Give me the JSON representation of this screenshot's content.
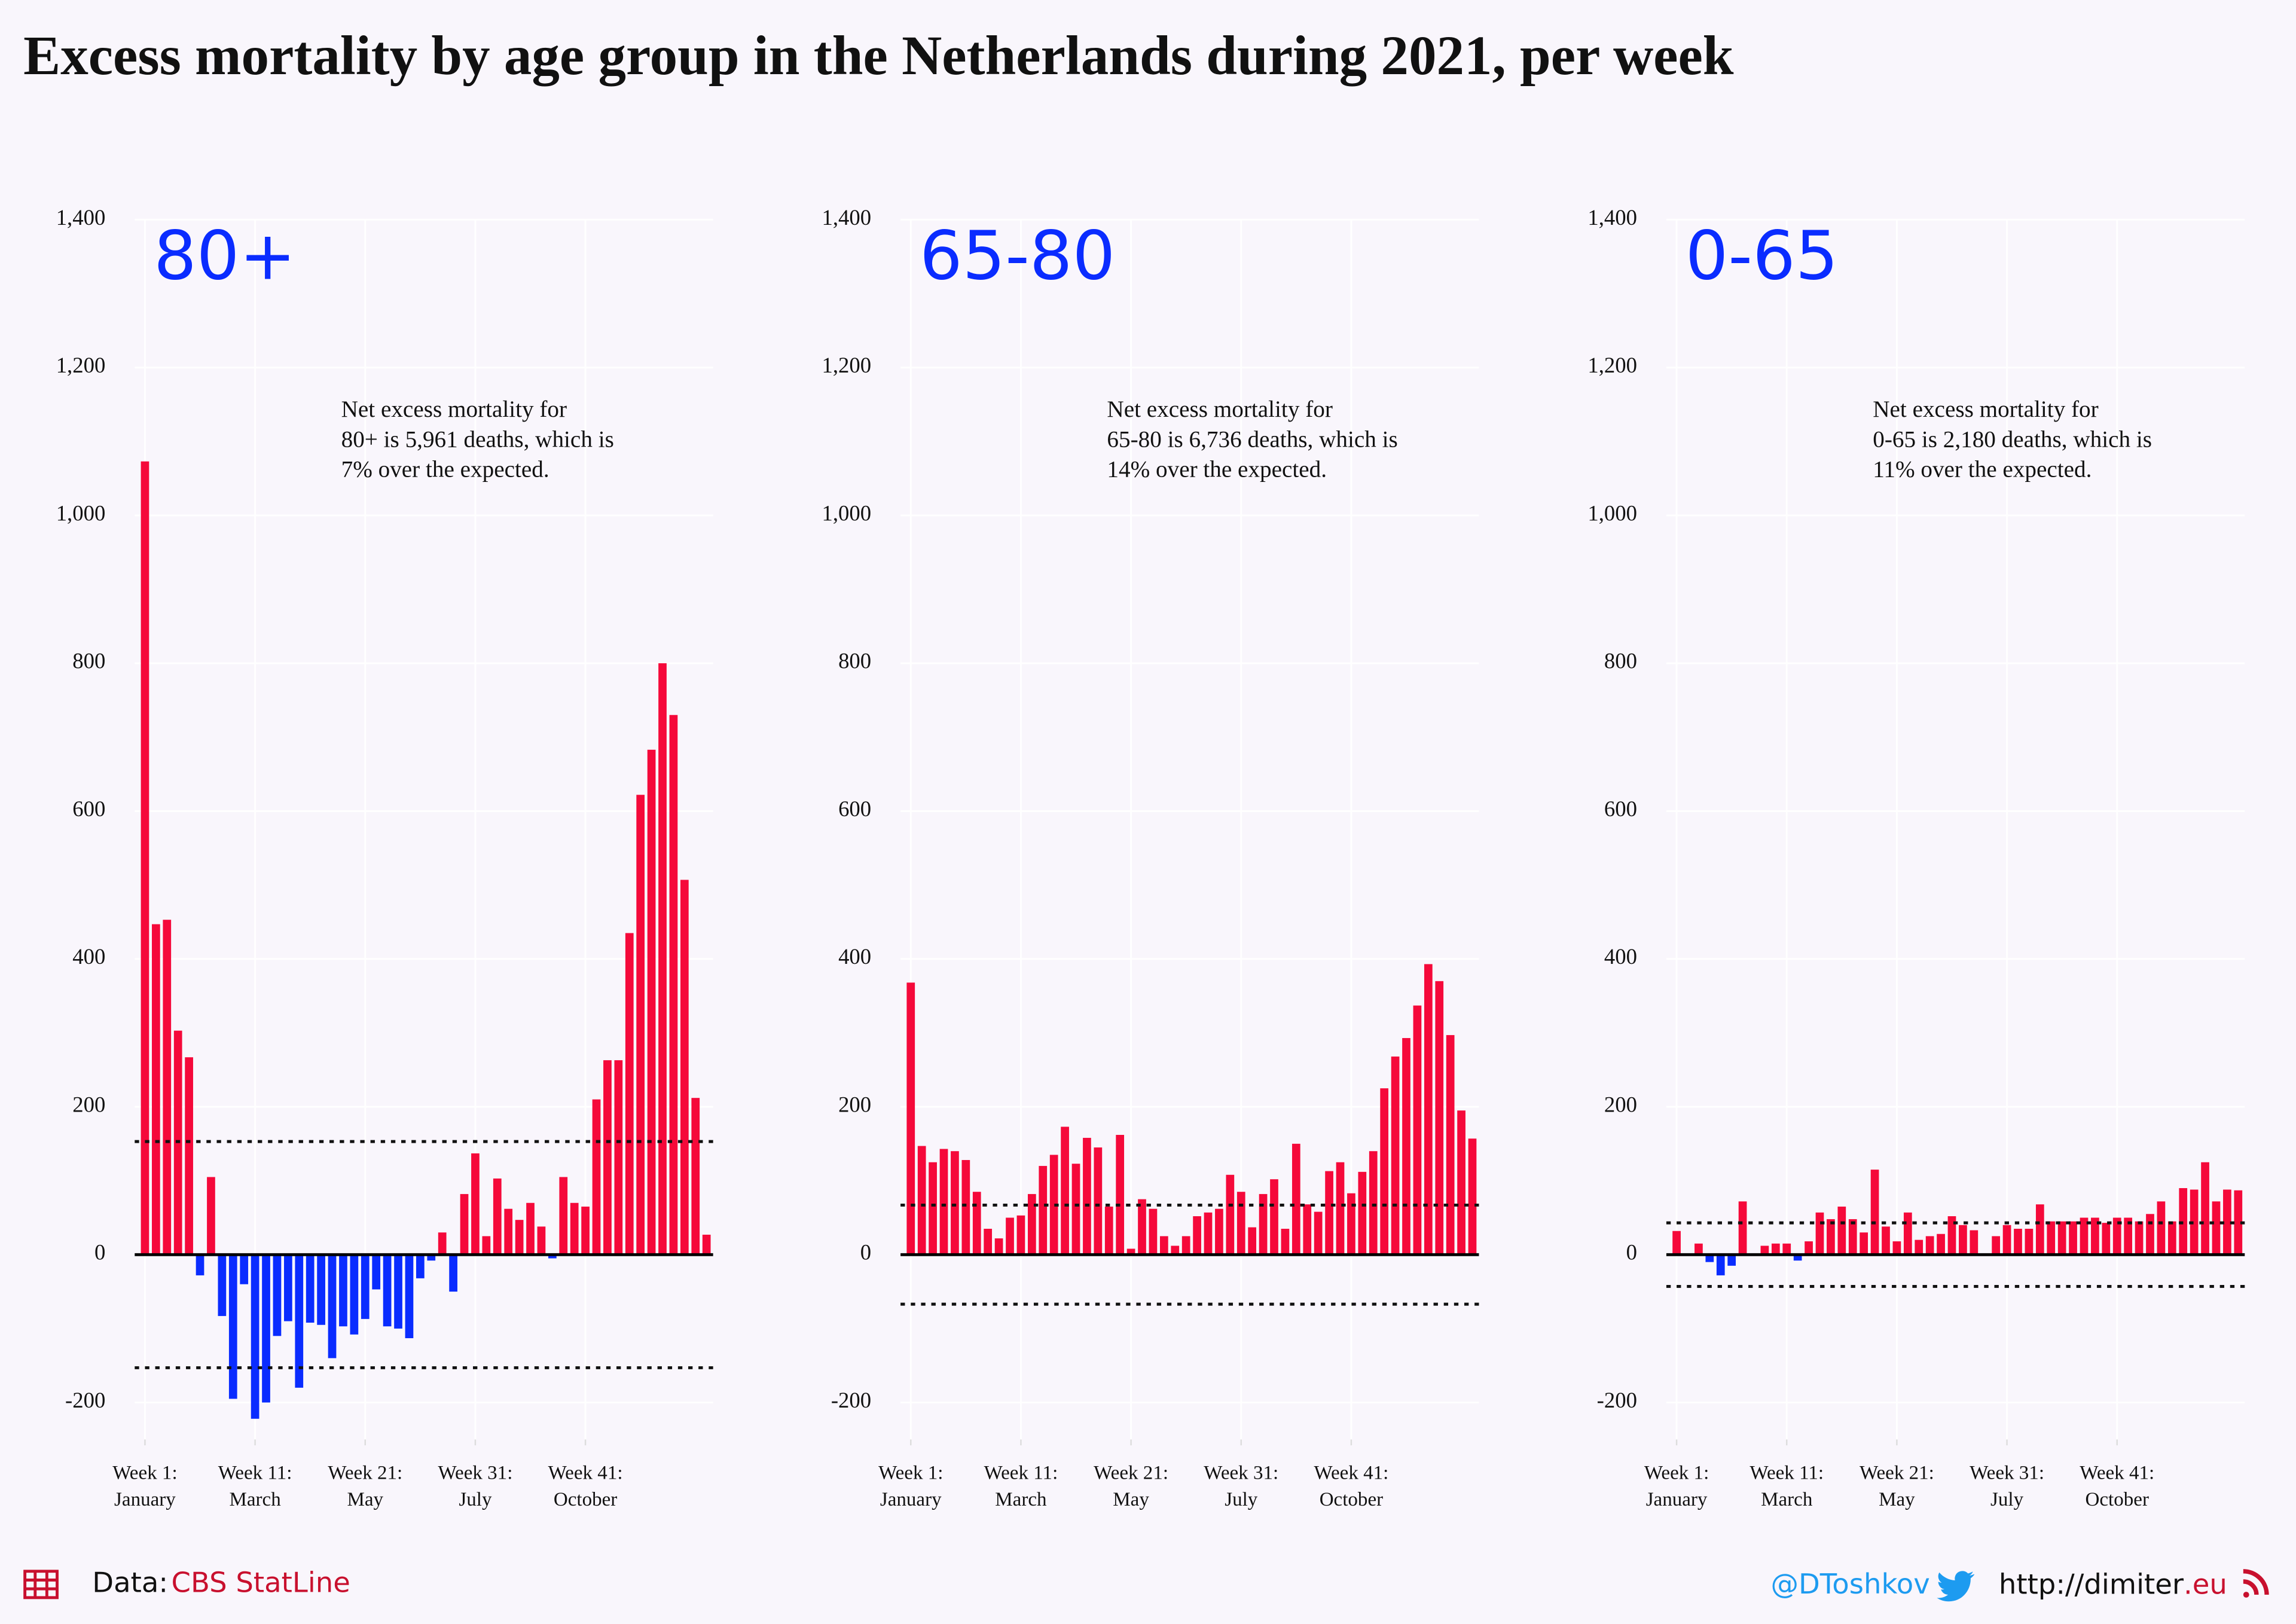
{
  "title": "Excess mortality by age group in the Netherlands during 2021, per week",
  "footer": {
    "data_label": "Data:",
    "source": "CBS StatLine",
    "handle": "@DToshkov",
    "site": "http://dimiter",
    "site_tld": ".eu"
  },
  "chart_data": [
    {
      "type": "bar",
      "label": "80+",
      "annotation": [
        "Net excess mortality for",
        "80+ is 5,961 deaths, which is",
        "7% over the expected."
      ],
      "categories": [
        [
          "Week 1:",
          "January"
        ],
        null,
        null,
        null,
        null,
        null,
        null,
        null,
        null,
        null,
        [
          "Week 11:",
          "March"
        ],
        null,
        null,
        null,
        null,
        null,
        null,
        null,
        null,
        null,
        [
          "Week 21:",
          "May"
        ],
        null,
        null,
        null,
        null,
        null,
        null,
        null,
        null,
        null,
        [
          "Week 31:",
          "July"
        ],
        null,
        null,
        null,
        null,
        null,
        null,
        null,
        null,
        null,
        [
          "Week 41:",
          "October"
        ],
        null,
        null,
        null,
        null,
        null,
        null,
        null,
        null,
        null,
        null,
        null
      ],
      "values": [
        1073,
        447,
        453,
        303,
        267,
        -28,
        105,
        -83,
        -195,
        -40,
        -222,
        -200,
        -110,
        -90,
        -180,
        -92,
        -95,
        -140,
        -97,
        -108,
        -87,
        -47,
        -97,
        -100,
        -113,
        -32,
        -8,
        30,
        -50,
        82,
        137,
        25,
        103,
        62,
        47,
        70,
        38,
        -5,
        105,
        70,
        65,
        210,
        263,
        263,
        435,
        622,
        683,
        800,
        730,
        507,
        212,
        27
      ],
      "reference_lines": [
        153,
        -153
      ],
      "positive_color": "#f5093a",
      "negative_color": "#0a2cff",
      "ylim": [
        -250,
        1400
      ],
      "yticks": [
        -200,
        0,
        200,
        400,
        600,
        800,
        {
          "value": 1000,
          "label": "1,000"
        },
        {
          "value": 1200,
          "label": "1,200"
        },
        {
          "value": 1400,
          "label": "1,400"
        }
      ],
      "grid": true
    },
    {
      "type": "bar",
      "label": "65-80",
      "annotation": [
        "Net excess mortality for",
        "65-80 is 6,736 deaths, which is",
        "14% over the expected."
      ],
      "categories": [
        [
          "Week 1:",
          "January"
        ],
        null,
        null,
        null,
        null,
        null,
        null,
        null,
        null,
        null,
        [
          "Week 11:",
          "March"
        ],
        null,
        null,
        null,
        null,
        null,
        null,
        null,
        null,
        null,
        [
          "Week 21:",
          "May"
        ],
        null,
        null,
        null,
        null,
        null,
        null,
        null,
        null,
        null,
        [
          "Week 31:",
          "July"
        ],
        null,
        null,
        null,
        null,
        null,
        null,
        null,
        null,
        null,
        [
          "Week 41:",
          "October"
        ],
        null,
        null,
        null,
        null,
        null,
        null,
        null,
        null,
        null,
        null,
        null
      ],
      "values": [
        368,
        147,
        125,
        143,
        140,
        128,
        85,
        35,
        22,
        50,
        53,
        82,
        120,
        135,
        173,
        123,
        158,
        145,
        65,
        162,
        8,
        75,
        62,
        25,
        12,
        25,
        52,
        57,
        62,
        108,
        85,
        37,
        82,
        102,
        35,
        150,
        68,
        58,
        113,
        125,
        83,
        112,
        140,
        225,
        268,
        293,
        337,
        393,
        370,
        297,
        195,
        157
      ],
      "reference_lines": [
        67,
        -67
      ],
      "positive_color": "#f5093a",
      "negative_color": "#0a2cff",
      "ylim": [
        -250,
        1400
      ],
      "yticks": [
        -200,
        0,
        200,
        400,
        600,
        800,
        {
          "value": 1000,
          "label": "1,000"
        },
        {
          "value": 1200,
          "label": "1,200"
        },
        {
          "value": 1400,
          "label": "1,400"
        }
      ],
      "grid": true
    },
    {
      "type": "bar",
      "label": "0-65",
      "annotation": [
        "Net excess mortality for",
        "0-65 is 2,180 deaths, which is",
        "11% over the expected."
      ],
      "categories": [
        [
          "Week 1:",
          "January"
        ],
        null,
        null,
        null,
        null,
        null,
        null,
        null,
        null,
        null,
        [
          "Week 11:",
          "March"
        ],
        null,
        null,
        null,
        null,
        null,
        null,
        null,
        null,
        null,
        [
          "Week 21:",
          "May"
        ],
        null,
        null,
        null,
        null,
        null,
        null,
        null,
        null,
        null,
        [
          "Week 31:",
          "July"
        ],
        null,
        null,
        null,
        null,
        null,
        null,
        null,
        null,
        null,
        [
          "Week 41:",
          "October"
        ],
        null,
        null,
        null,
        null,
        null,
        null,
        null,
        null,
        null,
        null,
        null
      ],
      "values": [
        32,
        0,
        15,
        -10,
        -28,
        -15,
        72,
        0,
        12,
        15,
        15,
        -8,
        18,
        57,
        48,
        65,
        48,
        30,
        115,
        38,
        18,
        57,
        20,
        25,
        28,
        52,
        40,
        33,
        0,
        25,
        40,
        35,
        35,
        68,
        45,
        45,
        45,
        50,
        50,
        43,
        50,
        50,
        45,
        55,
        72,
        45,
        90,
        88,
        125,
        72,
        88,
        87
      ],
      "reference_lines": [
        43,
        -43
      ],
      "positive_color": "#f5093a",
      "negative_color": "#0a2cff",
      "ylim": [
        -250,
        1400
      ],
      "yticks": [
        -200,
        0,
        200,
        400,
        600,
        800,
        {
          "value": 1000,
          "label": "1,000"
        },
        {
          "value": 1200,
          "label": "1,200"
        },
        {
          "value": 1400,
          "label": "1,400"
        }
      ],
      "grid": true
    }
  ]
}
